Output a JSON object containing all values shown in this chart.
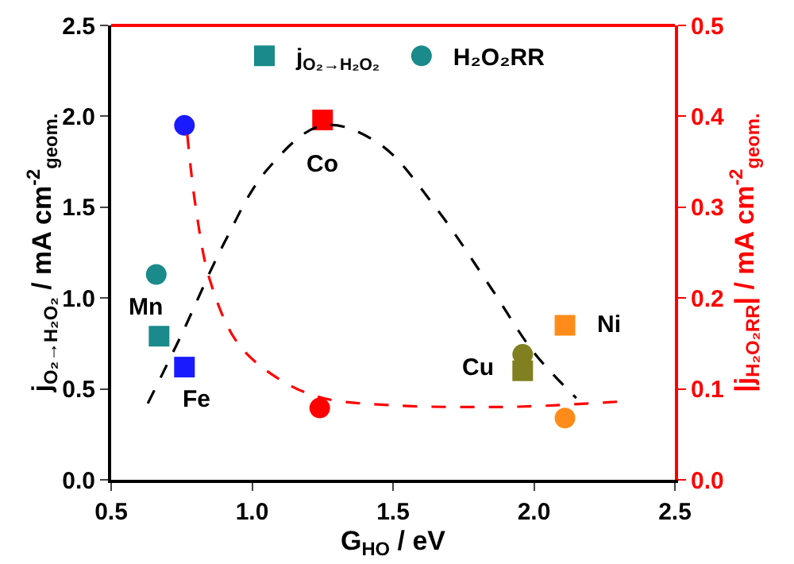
{
  "chart_data": {
    "type": "scatter",
    "xlabel": "G$_{HO}$ / eV",
    "ylabel": "j$_{O₂→H₂O₂}$ / mA cm$^{-2}$$_{geom.}$",
    "y2label": "|j$_{H₂O₂RR}$| / mA cm$^{-2}$$_{geom.}$",
    "xlim": [
      0.5,
      2.5
    ],
    "xticks": [
      0.5,
      {
        "value": 1,
        "label": "1.0"
      },
      1.5,
      {
        "value": 2,
        "label": "2.0"
      },
      2.5
    ],
    "ylim": [
      0,
      2.5
    ],
    "yticks": [
      {
        "value": 0,
        "label": "0.0"
      },
      0.5,
      {
        "value": 1,
        "label": "1.0"
      },
      1.5,
      {
        "value": 2,
        "label": "2.0"
      },
      2.5
    ],
    "y2lim": [
      0,
      0.5
    ],
    "y2ticks": [
      {
        "value": 0,
        "label": "0.0"
      },
      0.1,
      0.2,
      0.3,
      0.4,
      0.5
    ],
    "legend": "top",
    "series": [
      {
        "name": "j$_{O₂→H₂O₂}$",
        "marker": "square",
        "axis": "y",
        "x": [
          0.67,
          0.76,
          1.25,
          1.96,
          2.11
        ],
        "values": [
          0.79,
          0.62,
          1.98,
          0.6,
          0.85
        ],
        "colors": [
          "#1a8a8a",
          "#1a1aff",
          "#ff0000",
          "#808020",
          "#ff8c1a"
        ]
      },
      {
        "name": "H₂O₂RR",
        "marker": "circle",
        "axis": "y2",
        "x": [
          0.66,
          0.76,
          1.24,
          1.96,
          2.11
        ],
        "values": [
          0.226,
          0.39,
          0.079,
          0.138,
          0.068
        ],
        "colors": [
          "#1a8a8a",
          "#1a1aff",
          "#ff0000",
          "#808020",
          "#ff8c1a"
        ]
      },
      {
        "type": "line",
        "line_style": "dashed",
        "color": "#000000",
        "axis": "y",
        "x": [
          0.63,
          0.75,
          0.9,
          1.05,
          1.25,
          1.45,
          1.65,
          1.85,
          2.0,
          2.15
        ],
        "values": [
          0.42,
          0.8,
          1.3,
          1.7,
          1.95,
          1.85,
          1.5,
          1.05,
          0.7,
          0.45
        ]
      },
      {
        "type": "line",
        "line_style": "dashed",
        "color": "#ff0000",
        "axis": "y2",
        "x": [
          0.77,
          0.8,
          0.85,
          0.95,
          1.1,
          1.25,
          1.5,
          1.8,
          2.0,
          2.3
        ],
        "values": [
          0.38,
          0.3,
          0.22,
          0.15,
          0.11,
          0.09,
          0.082,
          0.08,
          0.081,
          0.086
        ]
      }
    ],
    "annotations": [
      {
        "text": "Mn",
        "x": 0.67,
        "y": 0.79
      },
      {
        "text": "Fe",
        "x": 0.76,
        "y": 0.62
      },
      {
        "text": "Co",
        "x": 1.25,
        "y": 1.98
      },
      {
        "text": "Cu",
        "x": 1.96,
        "y": 0.6
      },
      {
        "text": "Ni",
        "x": 2.11,
        "y": 0.85
      }
    ]
  }
}
